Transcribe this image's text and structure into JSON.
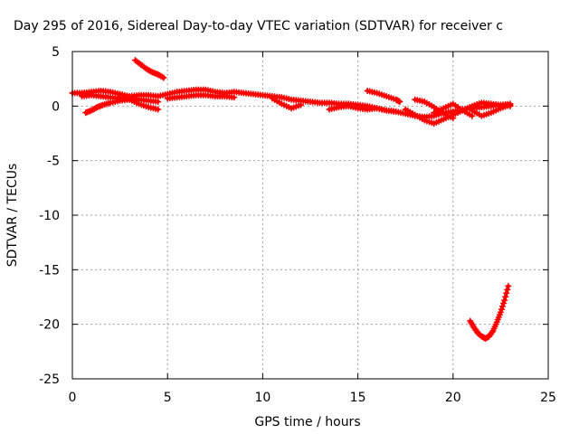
{
  "chart_data": {
    "type": "scatter",
    "title": "Day 295 of 2016, Sidereal Day-to-day VTEC variation (SDTVAR) for receiver c",
    "xlabel": "GPS time / hours",
    "ylabel": "SDTVAR / TECUs",
    "xlim": [
      0,
      25
    ],
    "ylim": [
      -25,
      5
    ],
    "xticks": [
      "0",
      "5",
      "10",
      "15",
      "20",
      "25"
    ],
    "yticks": [
      "5",
      "0",
      "-5",
      "-10",
      "-15",
      "-20",
      "-25"
    ],
    "grid": true,
    "marker_color": "#ff0000",
    "series": [
      {
        "x": [
          0.0,
          0.5,
          1.0,
          1.5,
          2.0,
          2.5,
          3.0,
          3.5,
          4.0,
          4.5,
          5.0,
          5.5,
          6.0,
          6.5,
          7.0,
          7.5,
          8.0,
          8.5,
          9.0,
          9.5,
          10.0,
          10.5,
          11.0,
          11.5,
          12.0,
          12.5,
          13.0,
          13.5,
          14.0,
          14.5,
          15.0,
          15.5,
          16.0,
          16.5,
          17.0,
          17.5,
          18.0,
          18.5,
          19.0,
          19.5,
          20.0,
          20.5,
          21.0,
          21.5,
          22.0,
          22.5,
          23.0
        ],
        "y": [
          1.2,
          1.2,
          1.3,
          1.4,
          1.3,
          1.1,
          0.9,
          1.0,
          1.0,
          0.9,
          1.1,
          1.3,
          1.4,
          1.5,
          1.5,
          1.3,
          1.2,
          1.3,
          1.2,
          1.1,
          1.0,
          0.9,
          0.8,
          0.6,
          0.5,
          0.4,
          0.3,
          0.3,
          0.2,
          0.2,
          0.1,
          0.0,
          -0.2,
          -0.4,
          -0.5,
          -0.7,
          -0.9,
          -1.0,
          -0.9,
          -0.6,
          -0.5,
          -0.3,
          -0.2,
          -0.1,
          0.0,
          0.1,
          0.2
        ]
      },
      {
        "x": [
          0.5,
          1.0,
          1.5,
          2.0,
          2.5,
          3.0,
          3.5,
          4.0,
          4.5
        ],
        "y": [
          0.9,
          1.0,
          0.9,
          0.8,
          0.7,
          0.7,
          0.6,
          0.5,
          0.4
        ]
      },
      {
        "x": [
          0.7,
          1.0,
          1.3,
          1.6,
          2.0,
          2.5,
          3.0
        ],
        "y": [
          -0.6,
          -0.4,
          -0.1,
          0.1,
          0.3,
          0.5,
          0.6
        ]
      },
      {
        "x": [
          2.5,
          3.0,
          3.5,
          4.0,
          4.5
        ],
        "y": [
          0.9,
          0.6,
          0.2,
          -0.1,
          -0.3
        ]
      },
      {
        "x": [
          3.3,
          3.6,
          3.9,
          4.2,
          4.5,
          4.8
        ],
        "y": [
          4.2,
          3.8,
          3.4,
          3.1,
          2.9,
          2.6
        ]
      },
      {
        "x": [
          5.0,
          5.5,
          6.0,
          6.5,
          7.0,
          7.5,
          8.0,
          8.5
        ],
        "y": [
          0.7,
          0.8,
          0.9,
          1.0,
          1.0,
          0.9,
          0.9,
          0.8
        ]
      },
      {
        "x": [
          10.5,
          11.0,
          11.5,
          12.0
        ],
        "y": [
          0.7,
          0.2,
          -0.2,
          0.1
        ]
      },
      {
        "x": [
          13.5,
          14.0,
          14.5,
          15.0,
          15.5,
          16.0,
          16.5,
          17.0
        ],
        "y": [
          -0.3,
          -0.1,
          0.0,
          -0.2,
          -0.3,
          -0.2,
          -0.4,
          -0.5
        ]
      },
      {
        "x": [
          15.5,
          16.0,
          16.5,
          17.0,
          17.2
        ],
        "y": [
          1.4,
          1.2,
          0.9,
          0.6,
          0.4
        ]
      },
      {
        "x": [
          17.5,
          18.0,
          18.5,
          19.0,
          19.5,
          20.0,
          20.5,
          21.0,
          21.5,
          22.0,
          22.5,
          23.0
        ],
        "y": [
          -0.3,
          -0.8,
          -1.3,
          -1.6,
          -1.2,
          -0.8,
          -0.4,
          0.0,
          0.3,
          0.2,
          0.1,
          0.0
        ]
      },
      {
        "x": [
          18.0,
          18.5,
          19.0,
          19.5,
          20.0
        ],
        "y": [
          0.6,
          0.4,
          -0.1,
          -0.7,
          -1.1
        ]
      },
      {
        "x": [
          19.0,
          19.5,
          20.0,
          20.5,
          21.0
        ],
        "y": [
          -0.6,
          -0.2,
          0.2,
          -0.4,
          -0.9
        ]
      },
      {
        "x": [
          21.0,
          21.5,
          22.0,
          22.5,
          23.0
        ],
        "y": [
          -0.4,
          -0.9,
          -0.6,
          -0.2,
          0.1
        ]
      },
      {
        "x": [
          20.9,
          21.1,
          21.3,
          21.5,
          21.7,
          21.9,
          22.1,
          22.3,
          22.5,
          22.7,
          22.9
        ],
        "y": [
          -19.7,
          -20.3,
          -20.8,
          -21.1,
          -21.3,
          -21.1,
          -20.6,
          -19.8,
          -18.9,
          -17.8,
          -16.5
        ]
      }
    ]
  }
}
